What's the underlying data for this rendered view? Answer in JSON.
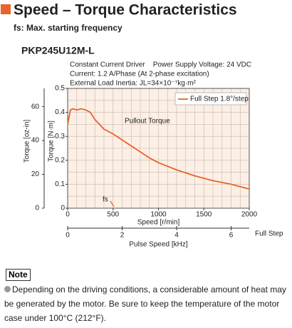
{
  "header": {
    "title": "Speed – Torque Characteristics",
    "subtitle": "fs: Max. starting frequency"
  },
  "chart_data": {
    "type": "line",
    "title": "PKP245U12M-L",
    "conditions": [
      "Constant Current Driver    Power Supply Voltage: 24 VDC",
      "Current: 1.2 A/Phase (At 2-phase excitation)",
      "External Load Inertia: JL=34×10⁻⁷kg·m²"
    ],
    "x": [
      0,
      30,
      60,
      100,
      150,
      200,
      250,
      300,
      400,
      500,
      600,
      700,
      800,
      900,
      1000,
      1200,
      1400,
      1600,
      1800,
      2000
    ],
    "series": [
      {
        "name": "Full Step 1.8°/step",
        "color": "#e8642a",
        "values": [
          0.35,
          0.41,
          0.415,
          0.41,
          0.415,
          0.41,
          0.4,
          0.37,
          0.33,
          0.31,
          0.285,
          0.26,
          0.235,
          0.21,
          0.19,
          0.16,
          0.135,
          0.115,
          0.1,
          0.08
        ]
      }
    ],
    "xlim": [
      0,
      2000
    ],
    "xticks": [
      0,
      500,
      1000,
      1500,
      2000
    ],
    "x_label": "Speed [r/min]",
    "ylim": [
      0,
      0.5
    ],
    "yticks": [
      0,
      0.1,
      0.2,
      0.3,
      0.4,
      0.5
    ],
    "y_label": "Torque [N·m]",
    "y2lim": [
      0,
      70.8
    ],
    "y2ticks": [
      0,
      20,
      40,
      60
    ],
    "y2_label": "Torque [oz-in]",
    "x2lim": [
      0,
      6.667
    ],
    "x2ticks": [
      0,
      2,
      4,
      6
    ],
    "x2_label": "Pulse Speed [kHz]",
    "x2_unit": "Full Step",
    "annotations": {
      "pullout": "Pullout Torque",
      "fs": "fs"
    },
    "grid": true,
    "x_minor_step": 100,
    "y_minor_step": 0.05,
    "legend": "upper right"
  },
  "note": {
    "heading": "Note",
    "text": "Depending on the driving conditions, a considerable amount of heat may be generated by the motor. Be sure to keep the temperature of the motor case under 100°C (212°F)."
  }
}
